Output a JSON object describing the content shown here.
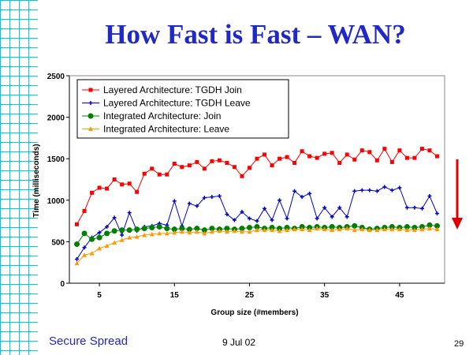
{
  "slide": {
    "title": "How Fast is Fast – WAN?",
    "footer_left": "Secure Spread",
    "footer_date": "9 Jul 02",
    "page_number": "29",
    "arrow_color": "#e00000"
  },
  "chart_data": {
    "type": "line",
    "title": "",
    "xlabel": "Group size (#members)",
    "ylabel": "Time (milliseconds)",
    "xlim": [
      1,
      51
    ],
    "ylim": [
      0,
      2500
    ],
    "x_ticks": [
      5,
      15,
      25,
      35,
      45
    ],
    "y_ticks": [
      0,
      500,
      1000,
      1500,
      2000,
      2500
    ],
    "grid": false,
    "legend_position": "top-left",
    "x": [
      2,
      3,
      4,
      5,
      6,
      7,
      8,
      9,
      10,
      11,
      12,
      13,
      14,
      15,
      16,
      17,
      18,
      19,
      20,
      21,
      22,
      23,
      24,
      25,
      26,
      27,
      28,
      29,
      30,
      31,
      32,
      33,
      34,
      35,
      36,
      37,
      38,
      39,
      40,
      41,
      42,
      43,
      44,
      45,
      46,
      47,
      48,
      49,
      50
    ],
    "series": [
      {
        "name": "Layered Architecture: TGDH Join",
        "color": "#ff0000",
        "marker": "square",
        "values": [
          710,
          870,
          1090,
          1150,
          1140,
          1250,
          1190,
          1200,
          1100,
          1320,
          1380,
          1310,
          1310,
          1440,
          1400,
          1420,
          1460,
          1380,
          1470,
          1480,
          1450,
          1400,
          1290,
          1390,
          1500,
          1550,
          1420,
          1500,
          1520,
          1450,
          1590,
          1530,
          1510,
          1560,
          1570,
          1450,
          1550,
          1490,
          1600,
          1580,
          1480,
          1620,
          1460,
          1600,
          1510,
          1510,
          1620,
          1600,
          1530
        ]
      },
      {
        "name": "Layered Architecture: TGDH Leave",
        "color": "#0000cc",
        "marker": "plus",
        "values": [
          290,
          430,
          550,
          610,
          680,
          790,
          580,
          850,
          630,
          680,
          690,
          720,
          700,
          990,
          690,
          960,
          930,
          1030,
          1040,
          1050,
          830,
          760,
          860,
          780,
          750,
          900,
          760,
          1000,
          780,
          1110,
          1040,
          1080,
          780,
          910,
          800,
          910,
          800,
          1110,
          1120,
          1120,
          1110,
          1160,
          1120,
          1150,
          910,
          910,
          900,
          1050,
          840
        ]
      },
      {
        "name": "Integrated Architecture: Join",
        "color": "#008000",
        "marker": "circle",
        "values": [
          470,
          600,
          530,
          550,
          600,
          630,
          640,
          640,
          650,
          660,
          670,
          680,
          660,
          650,
          660,
          650,
          660,
          640,
          660,
          650,
          660,
          650,
          660,
          670,
          680,
          660,
          670,
          660,
          670,
          660,
          680,
          670,
          680,
          670,
          680,
          670,
          680,
          690,
          670,
          650,
          660,
          670,
          680,
          670,
          680,
          670,
          680,
          700,
          690
        ]
      },
      {
        "name": "Integrated Architecture: Leave",
        "color": "#ff9900",
        "marker": "triangle",
        "values": [
          240,
          340,
          360,
          420,
          450,
          490,
          520,
          550,
          560,
          580,
          590,
          600,
          600,
          610,
          620,
          610,
          620,
          600,
          620,
          630,
          620,
          630,
          620,
          620,
          640,
          640,
          640,
          630,
          640,
          650,
          650,
          640,
          660,
          650,
          640,
          650,
          660,
          640,
          650,
          640,
          640,
          650,
          650,
          650,
          640,
          640,
          650,
          660,
          650
        ]
      }
    ]
  }
}
